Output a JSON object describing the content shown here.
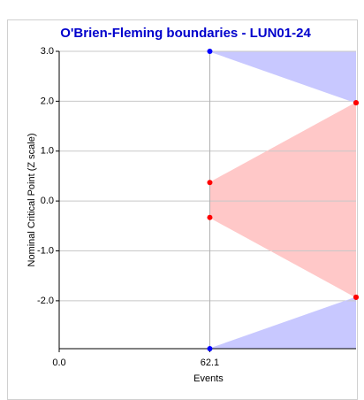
{
  "chart_data": {
    "type": "boundary",
    "title": "O'Brien-Fleming boundaries - LUN01-24",
    "x_label": "Events",
    "y_label": "Nominal Critical Point (Z scale)",
    "x": [
      62.1,
      122.4
    ],
    "series": [
      {
        "color": "#0000ff",
        "point_colors": [
          "#0000ff",
          "#ff0000"
        ],
        "fill": "#c8c8ff",
        "fill_to": "top",
        "values": [
          3.0,
          1.97
        ]
      },
      {
        "color": "#ff0000",
        "point_colors": [
          "#ff0000",
          "#ff0000"
        ],
        "fill": "#ffc8c8",
        "fill_to": "next",
        "values": [
          0.37,
          1.97
        ]
      },
      {
        "color": "#ff0000",
        "point_colors": [
          "#ff0000",
          "#ff0000"
        ],
        "fill": "#ffc8c8",
        "fill_to": "none",
        "values": [
          -0.33,
          -1.93
        ]
      },
      {
        "color": "#0000ff",
        "point_colors": [
          "#0000ff",
          "#ff0000"
        ],
        "fill": "#c8c8ff",
        "fill_to": "bottom",
        "values": [
          -2.96,
          -1.93
        ]
      }
    ],
    "xlim": [
      0,
      122.4
    ],
    "ylim": [
      -2.96,
      3.0
    ],
    "xticks": [
      {
        "value": 0,
        "label": "0.0"
      },
      62.1
    ],
    "yticks": [
      {
        "value": 3,
        "label": "3.0"
      },
      {
        "value": 2,
        "label": "2.0"
      },
      {
        "value": 1,
        "label": "1.0"
      },
      {
        "value": 0,
        "label": "0.0"
      },
      {
        "value": -1,
        "label": "-1.0"
      },
      {
        "value": -2,
        "label": "-2.0"
      }
    ],
    "grid": true
  }
}
